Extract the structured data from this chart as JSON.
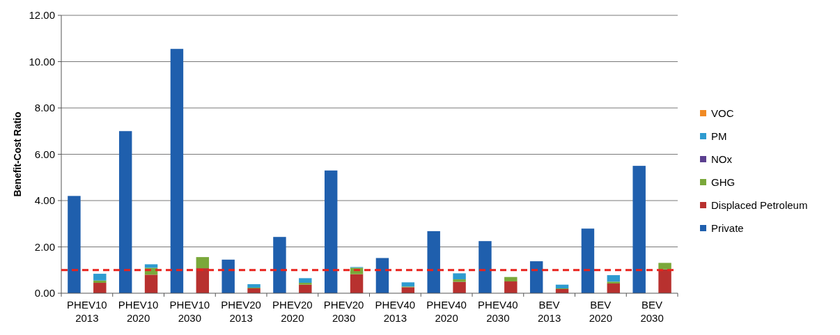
{
  "chart_data": {
    "type": "bar",
    "stacked": true,
    "ylabel": "Benefit-Cost Ratio",
    "categories": [
      "PHEV10 2013",
      null,
      "PHEV10 2020",
      null,
      "PHEV10 2030",
      null,
      "PHEV20 2013",
      null,
      "PHEV20 2020",
      null,
      "PHEV20 2030",
      null,
      "PHEV40 2013",
      null,
      "PHEV40 2020",
      null,
      "PHEV40 2030",
      null,
      "BEV 2013",
      null,
      "BEV 2020",
      null,
      "BEV 2030",
      null
    ],
    "series": [
      {
        "name": "Private",
        "color": "#1f5fad",
        "values": [
          4.2,
          null,
          7.0,
          null,
          10.55,
          null,
          1.45,
          null,
          2.43,
          null,
          5.3,
          null,
          1.52,
          null,
          2.68,
          null,
          2.25,
          null,
          1.38,
          null,
          2.79,
          null,
          5.5,
          null
        ]
      },
      {
        "name": "Displaced Petroleum",
        "color": "#b8312f",
        "values": [
          null,
          0.45,
          null,
          0.8,
          null,
          1.08,
          null,
          0.21,
          null,
          0.37,
          null,
          0.82,
          null,
          0.26,
          null,
          0.49,
          null,
          0.51,
          null,
          0.18,
          null,
          0.42,
          null,
          1.03
        ]
      },
      {
        "name": "GHG",
        "color": "#7aa83a",
        "values": [
          null,
          0.1,
          null,
          0.3,
          null,
          0.48,
          null,
          0.03,
          null,
          0.08,
          null,
          0.28,
          null,
          0.03,
          null,
          0.11,
          null,
          0.19,
          null,
          0.03,
          null,
          0.08,
          null,
          0.28
        ]
      },
      {
        "name": "NOx",
        "color": "#5b3f8f",
        "values": [
          null,
          0,
          null,
          0,
          null,
          0,
          null,
          0,
          null,
          0,
          null,
          0,
          null,
          0,
          null,
          0,
          null,
          0,
          null,
          0,
          null,
          0,
          null,
          0
        ]
      },
      {
        "name": "PM",
        "color": "#2e9bd0",
        "values": [
          null,
          0.29,
          null,
          0.15,
          null,
          0,
          null,
          0.15,
          null,
          0.2,
          null,
          0.03,
          null,
          0.18,
          null,
          0.26,
          null,
          0,
          null,
          0.16,
          null,
          0.28,
          null,
          0
        ]
      },
      {
        "name": "VOC",
        "color": "#f08a24",
        "values": [
          null,
          0,
          null,
          0,
          null,
          0,
          null,
          0,
          null,
          0,
          null,
          0,
          null,
          0,
          null,
          0,
          null,
          0,
          null,
          0,
          null,
          0,
          null,
          0
        ]
      }
    ],
    "ylim": [
      0,
      12
    ],
    "yticks": [
      {
        "value": 0,
        "label": "0.00"
      },
      {
        "value": 2,
        "label": "2.00"
      },
      {
        "value": 4,
        "label": "4.00"
      },
      {
        "value": 6,
        "label": "6.00"
      },
      {
        "value": 8,
        "label": "8.00"
      },
      {
        "value": 10,
        "label": "10.00"
      },
      {
        "value": 12,
        "label": "12.00"
      }
    ],
    "grid": "y",
    "legend": "right",
    "ref_lines": [
      {
        "axis": "y",
        "value": 1,
        "color": "#e8221c",
        "line_style": "dashed"
      }
    ]
  }
}
